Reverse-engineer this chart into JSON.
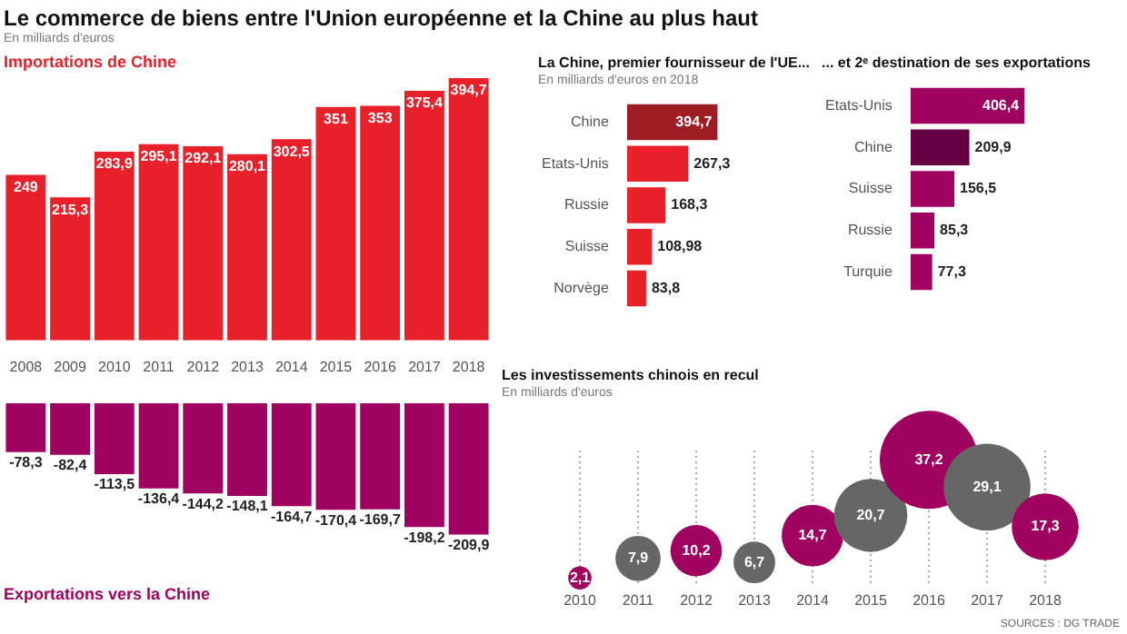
{
  "chart_data": [
    {
      "type": "bar",
      "title": "Le commerce de biens entre l'Union européenne et la Chine au plus haut",
      "subtitle": "En milliards d'euros",
      "categories": [
        "2008",
        "2009",
        "2010",
        "2011",
        "2012",
        "2013",
        "2014",
        "2015",
        "2016",
        "2017",
        "2018"
      ],
      "series": [
        {
          "name": "Importations de Chine",
          "color": "#e8202a",
          "values": [
            249,
            215.3,
            283.9,
            295.1,
            292.1,
            280.1,
            302.5,
            351,
            353,
            375.4,
            394.7
          ],
          "value_labels": [
            "249",
            "215,3",
            "283,9",
            "295,1",
            "292,1",
            "280,1",
            "302,5",
            "351",
            "353",
            "375,4",
            "394,7"
          ]
        }
      ],
      "tick_labels": "x"
    },
    {
      "type": "bar",
      "categories": [
        "2008",
        "2009",
        "2010",
        "2011",
        "2012",
        "2013",
        "2014",
        "2015",
        "2016",
        "2017",
        "2018"
      ],
      "series": [
        {
          "name": "Exportations vers la Chine",
          "color": "#a0035f",
          "values": [
            -78.3,
            -82.4,
            -113.5,
            -136.4,
            -144.2,
            -148.1,
            -164.7,
            -170.4,
            -169.7,
            -198.2,
            -209.9
          ],
          "value_labels": [
            "-78,3",
            "-82,4",
            "-113,5",
            "-136,4",
            "-144,2",
            "-148,1",
            "-164,7",
            "-170,4",
            "-169,7",
            "-198,2",
            "-209,9"
          ]
        }
      ],
      "tick_labels": false
    },
    {
      "type": "bar",
      "orientation": "horizontal",
      "title": "La Chine, premier fournisseur de l'UE...",
      "subtitle": "En milliards d'euros en 2018",
      "categories": [
        "Chine",
        "Etats-Unis",
        "Russie",
        "Suisse",
        "Norvège"
      ],
      "values": [
        394.7,
        267.3,
        168.3,
        108.98,
        83.8
      ],
      "value_labels": [
        "394,7",
        "267,3",
        "168,3",
        "108,98",
        "83,8"
      ],
      "colors": [
        "#9e1c24",
        "#e8202a",
        "#e8202a",
        "#e8202a",
        "#e8202a"
      ],
      "tick_labels": "y"
    },
    {
      "type": "bar",
      "orientation": "horizontal",
      "title": "... et 2ᵉ destination de ses exportations",
      "categories": [
        "Etats-Unis",
        "Chine",
        "Suisse",
        "Russie",
        "Turquie"
      ],
      "values": [
        406.4,
        209.9,
        156.5,
        85.3,
        77.3
      ],
      "value_labels": [
        "406,4",
        "209,9",
        "156,5",
        "85,3",
        "77,3"
      ],
      "colors": [
        "#a0035f",
        "#650042",
        "#a0035f",
        "#a0035f",
        "#a0035f"
      ],
      "tick_labels": "y"
    },
    {
      "type": "bubble",
      "title": "Les investissements chinois en recul",
      "subtitle": "En milliards d'euros",
      "categories": [
        "2010",
        "2011",
        "2012",
        "2013",
        "2014",
        "2015",
        "2016",
        "2017",
        "2018"
      ],
      "values": [
        2.1,
        7.9,
        10.2,
        6.7,
        14.7,
        20.7,
        37.2,
        29.1,
        17.3
      ],
      "sizes": [
        0.056,
        0.212,
        0.274,
        0.18,
        0.395,
        0.556,
        1,
        0.782,
        0.465
      ],
      "grid": "x",
      "value_labels": [
        "2,1",
        "7,9",
        "10,2",
        "6,7",
        "14,7",
        "20,7",
        "37,2",
        "29,1",
        "17,3"
      ],
      "colors": [
        "#a0035f",
        "#666666",
        "#a0035f",
        "#666666",
        "#a0035f",
        "#666666",
        "#a0035f",
        "#666666",
        "#a0035f"
      ],
      "annotations": [
        "SOURCES : DG TRADE"
      ]
    }
  ]
}
